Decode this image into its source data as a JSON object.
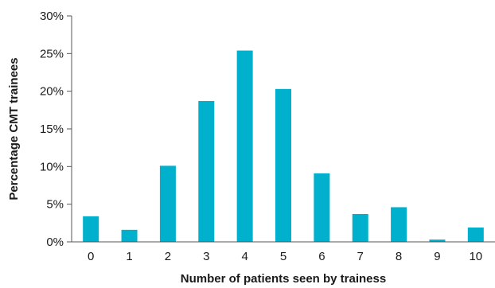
{
  "chart_data": {
    "type": "bar",
    "categories": [
      "0",
      "1",
      "2",
      "3",
      "4",
      "5",
      "6",
      "7",
      "8",
      "9",
      "10"
    ],
    "values": [
      3.4,
      1.6,
      10.1,
      18.7,
      25.4,
      20.3,
      9.1,
      3.7,
      4.6,
      0.3,
      1.9
    ],
    "xlabel": "Number of patients seen by trainess",
    "ylabel": "Percentage CMT trainees",
    "ylim": [
      0,
      30
    ],
    "yticks": [
      0,
      5,
      10,
      15,
      20,
      25,
      30
    ],
    "ytick_labels": [
      "0%",
      "5%",
      "10%",
      "15%",
      "20%",
      "25%",
      "30%"
    ],
    "grid": false,
    "legend": "none",
    "bar_color": "#00b0cc"
  }
}
